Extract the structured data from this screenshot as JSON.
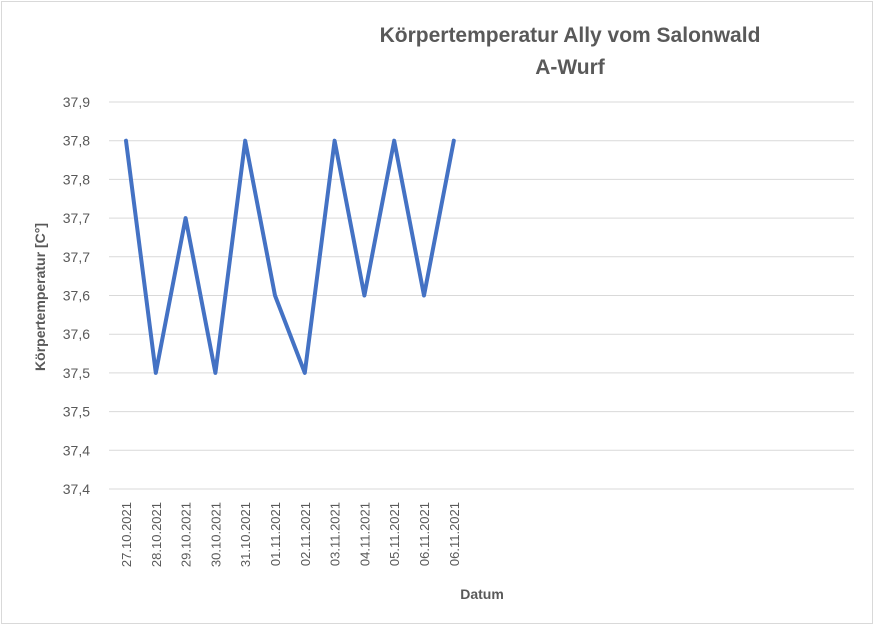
{
  "chart_data": {
    "type": "line",
    "title": [
      "Körpertemperatur Ally vom Salonwald",
      "A-Wurf"
    ],
    "xlabel": "Datum",
    "ylabel": "Körpertemperatur [C°]",
    "x_tick_labels": [
      "27.10.2021",
      "28.10.2021",
      "29.10.2021",
      "30.10.2021",
      "31.10.2021",
      "01.11.2021",
      "02.11.2021",
      "03.11.2021",
      "04.11.2021",
      "05.11.2021",
      "06.11.2021",
      "06.11.2021"
    ],
    "y_tick_labels": [
      "37,9",
      "37,8",
      "37,8",
      "37,7",
      "37,7",
      "37,6",
      "37,6",
      "37,5",
      "37,5",
      "37,4",
      "37,4"
    ],
    "ylim": [
      37.35,
      37.85
    ],
    "y_tick_step": 0.05,
    "grid": true,
    "legend": "none",
    "series": [
      {
        "color": "#4472c4",
        "values": [
          37.8,
          37.5,
          37.7,
          37.5,
          37.8,
          37.6,
          37.5,
          37.8,
          37.6,
          37.8,
          37.6,
          37.8
        ]
      }
    ]
  }
}
